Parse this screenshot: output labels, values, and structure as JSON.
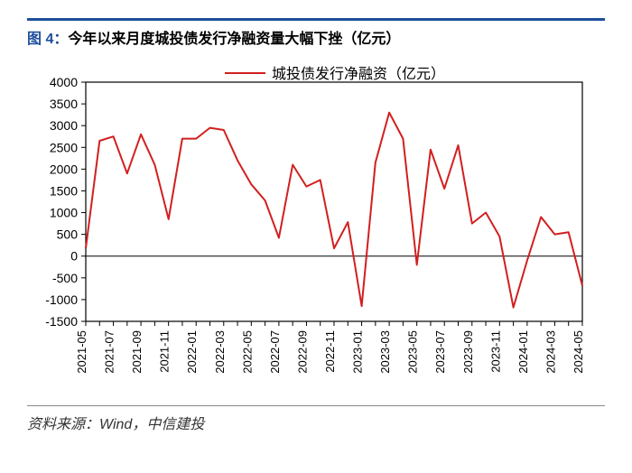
{
  "chart": {
    "type": "line",
    "title_prefix": "图 4：",
    "title": "今年以来月度城投债发行净融资量大幅下挫（亿元）",
    "title_fontsize": 18,
    "title_prefix_color": "#1f4e9c",
    "title_text_color": "#000000",
    "title_border_color": "#1f4e9c",
    "series_name": "城投债发行净融资（亿元）",
    "series_color": "#d21f1f",
    "line_width": 2,
    "background_color": "#ffffff",
    "axis_color": "#000000",
    "tick_color": "#000000",
    "ylabel_fontsize": 14,
    "xlabel_fontsize": 13,
    "legend_fontsize": 16,
    "ylim": [
      -1500,
      4000
    ],
    "ytick_step": 500,
    "yticks": [
      -1500,
      -1000,
      -500,
      0,
      500,
      1000,
      1500,
      2000,
      2500,
      3000,
      3500,
      4000
    ],
    "x_categories": [
      "2021-05",
      "2021-06",
      "2021-07",
      "2021-08",
      "2021-09",
      "2021-10",
      "2021-11",
      "2021-12",
      "2022-01",
      "2022-02",
      "2022-03",
      "2022-04",
      "2022-05",
      "2022-06",
      "2022-07",
      "2022-08",
      "2022-09",
      "2022-10",
      "2022-11",
      "2022-12",
      "2023-01",
      "2023-02",
      "2023-03",
      "2023-04",
      "2023-05",
      "2023-06",
      "2023-07",
      "2023-08",
      "2023-09",
      "2023-10",
      "2023-11",
      "2023-12",
      "2024-01",
      "2024-02",
      "2024-03",
      "2024-04",
      "2024-05"
    ],
    "x_tick_labels": [
      "2021-05",
      "2021-07",
      "2021-09",
      "2021-11",
      "2022-01",
      "2022-03",
      "2022-05",
      "2022-07",
      "2022-09",
      "2022-11",
      "2023-01",
      "2023-03",
      "2023-05",
      "2023-07",
      "2023-09",
      "2023-11",
      "2024-01",
      "2024-03",
      "2024-05"
    ],
    "values": [
      180,
      2650,
      2750,
      1900,
      2800,
      2100,
      850,
      2700,
      2700,
      2950,
      2900,
      2200,
      1650,
      1280,
      420,
      2100,
      1600,
      1750,
      180,
      780,
      -1150,
      2150,
      3300,
      2700,
      -200,
      2450,
      1550,
      2550,
      750,
      1000,
      450,
      -1180,
      -100,
      900,
      500,
      550,
      -680
    ],
    "source_label": "资料来源：Wind，中信建投",
    "source_fontsize": 14
  }
}
